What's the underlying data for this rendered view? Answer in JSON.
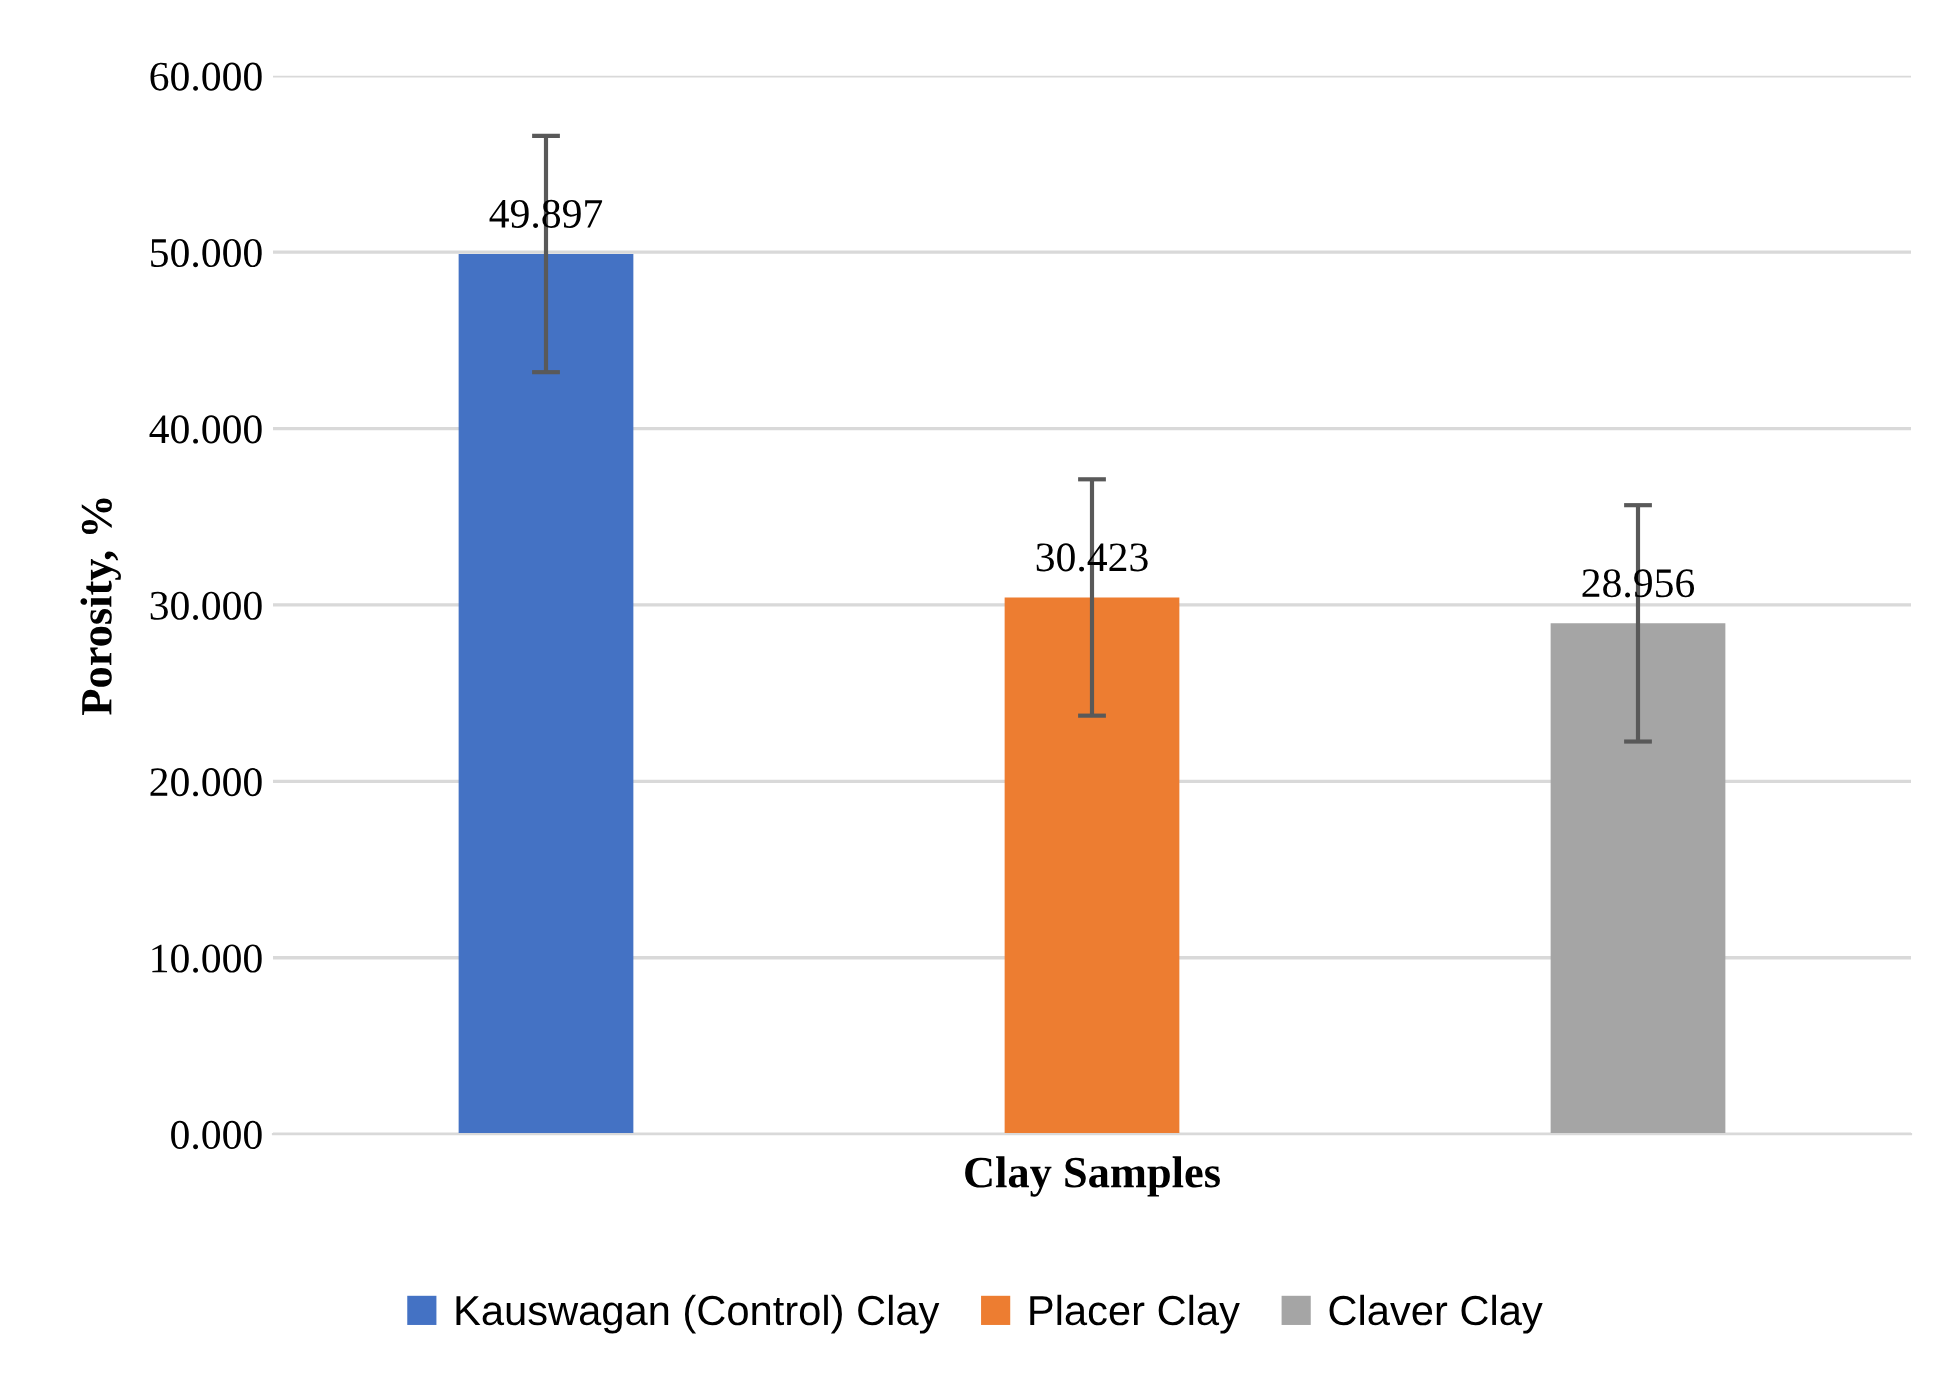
{
  "chart_data": {
    "type": "bar",
    "xlabel": "Clay Samples",
    "ylabel": "Porosity, %",
    "categories": [
      null
    ],
    "series": [
      {
        "name": "Kauswagan (Control) Clay",
        "color": "#4472c4",
        "values": [
          49.897
        ],
        "errors": [
          6.7
        ]
      },
      {
        "name": "Placer Clay",
        "color": "#ed7d31",
        "values": [
          30.423
        ],
        "errors": [
          6.7
        ]
      },
      {
        "name": "Claver Clay",
        "color": "#a5a5a5",
        "values": [
          28.956
        ],
        "errors": [
          6.7
        ]
      }
    ],
    "ylim": [
      0,
      60
    ],
    "yticks": [
      {
        "value": 0,
        "label": "0.000"
      },
      {
        "value": 10,
        "label": "10.000"
      },
      {
        "value": 20,
        "label": "20.000"
      },
      {
        "value": 30,
        "label": "30.000"
      },
      {
        "value": 40,
        "label": "40.000"
      },
      {
        "value": 50,
        "label": "50.000"
      },
      {
        "value": 60,
        "label": "60.000"
      }
    ],
    "grid": "y",
    "legend": "bottom",
    "data_labels": true,
    "tick_labels": "y"
  }
}
